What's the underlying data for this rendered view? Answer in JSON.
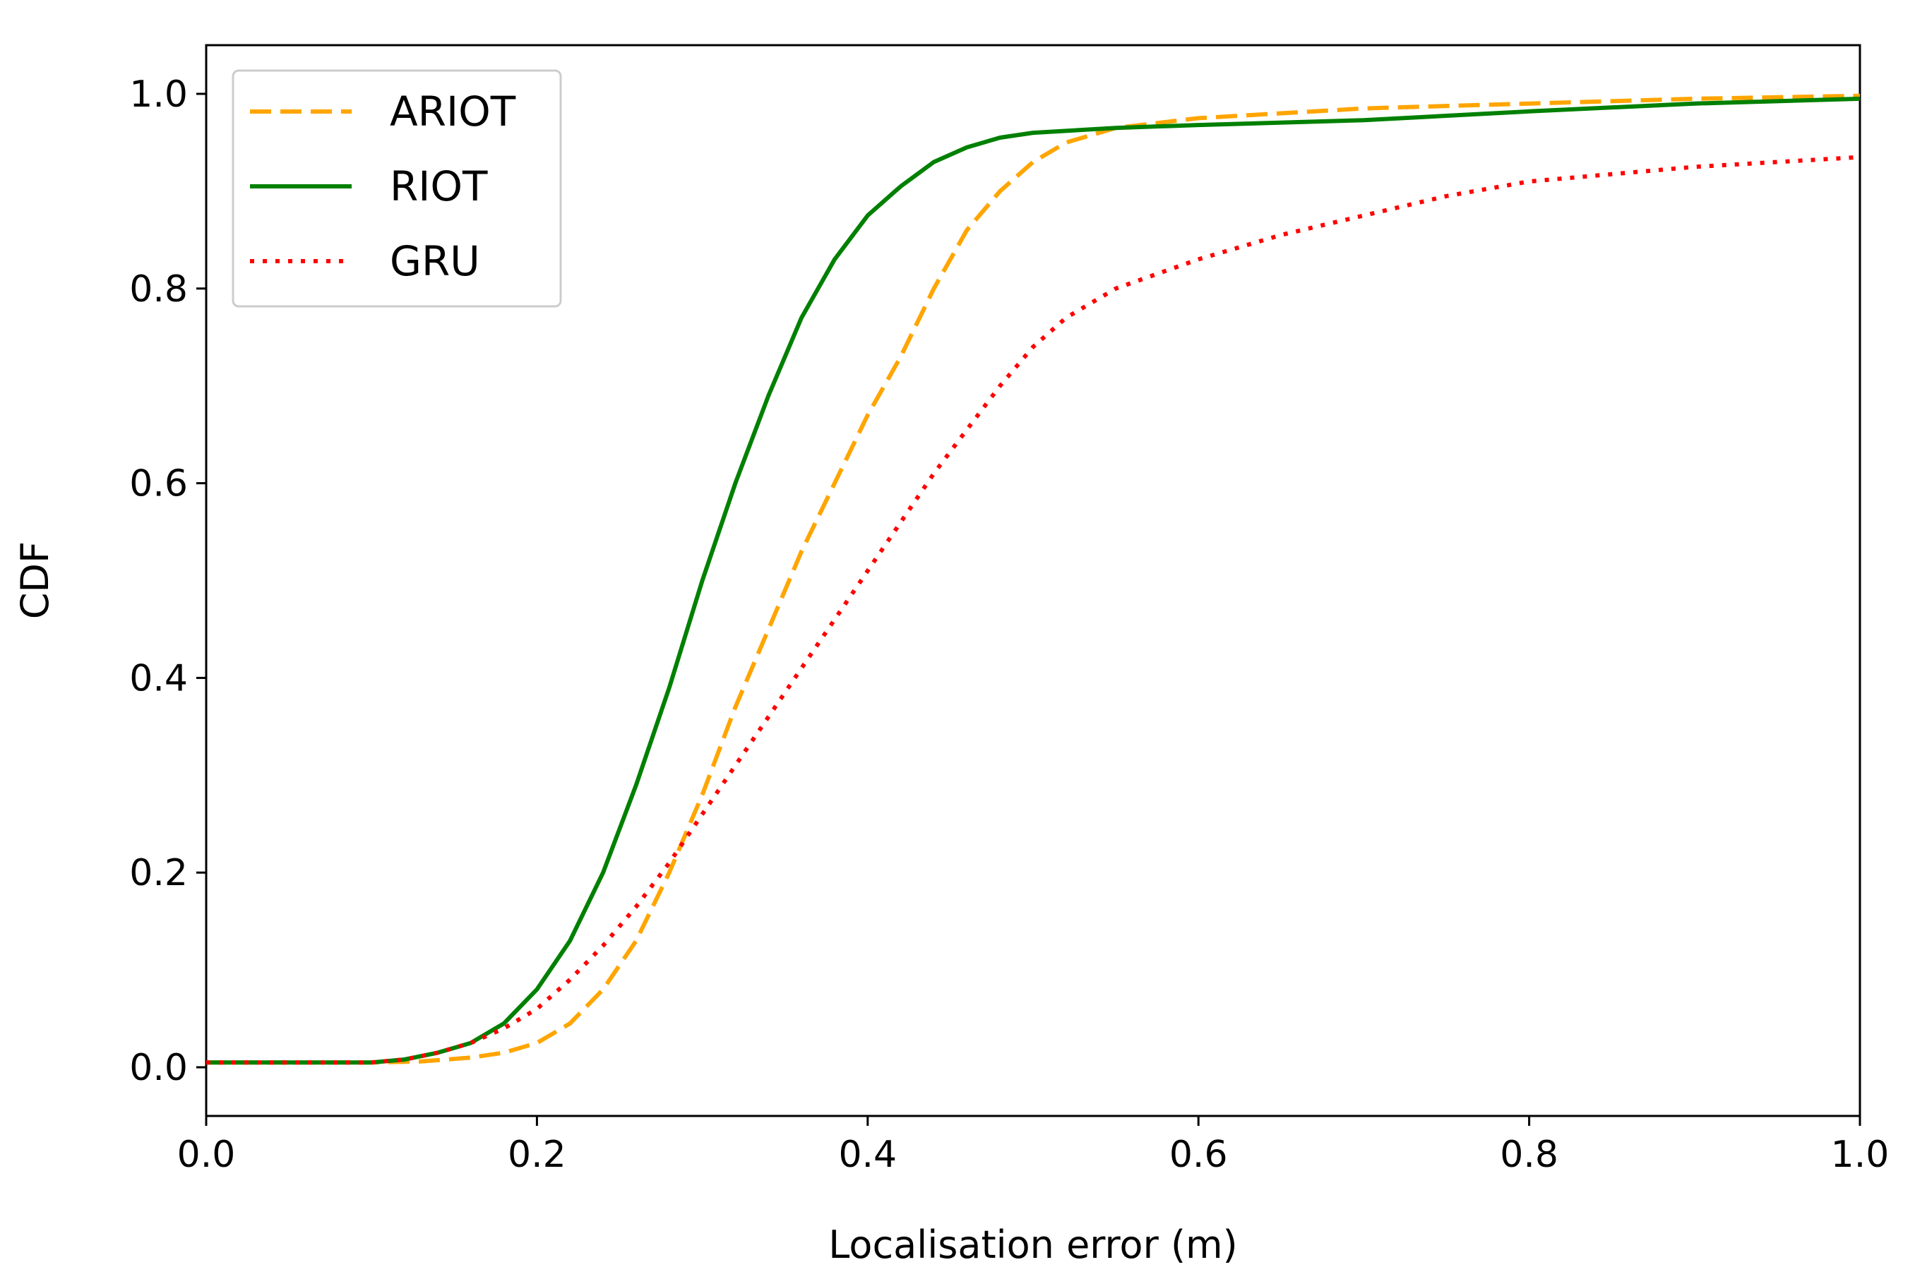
{
  "chart_data": {
    "type": "line",
    "xlabel": "Localisation error (m)",
    "ylabel": "CDF",
    "xlim": [
      0.0,
      1.0
    ],
    "ylim": [
      -0.05,
      1.05
    ],
    "x_ticks": [
      "0.0",
      "0.2",
      "0.4",
      "0.6",
      "0.8",
      "1.0"
    ],
    "y_ticks": [
      "0.0",
      "0.2",
      "0.4",
      "0.6",
      "0.8",
      "1.0"
    ],
    "x_tick_values": [
      0.0,
      0.2,
      0.4,
      0.6,
      0.8,
      1.0
    ],
    "y_tick_values": [
      0.0,
      0.2,
      0.4,
      0.6,
      0.8,
      1.0
    ],
    "grid": false,
    "legend_position": "top-left",
    "series": [
      {
        "name": "ARIOT",
        "color": "#ffa500",
        "style": "dashed",
        "points": [
          [
            0.0,
            0.005
          ],
          [
            0.1,
            0.005
          ],
          [
            0.13,
            0.006
          ],
          [
            0.16,
            0.01
          ],
          [
            0.18,
            0.015
          ],
          [
            0.2,
            0.025
          ],
          [
            0.22,
            0.045
          ],
          [
            0.24,
            0.08
          ],
          [
            0.26,
            0.13
          ],
          [
            0.28,
            0.2
          ],
          [
            0.3,
            0.28
          ],
          [
            0.32,
            0.37
          ],
          [
            0.34,
            0.45
          ],
          [
            0.36,
            0.53
          ],
          [
            0.38,
            0.6
          ],
          [
            0.4,
            0.67
          ],
          [
            0.42,
            0.73
          ],
          [
            0.44,
            0.8
          ],
          [
            0.46,
            0.86
          ],
          [
            0.48,
            0.9
          ],
          [
            0.5,
            0.93
          ],
          [
            0.52,
            0.95
          ],
          [
            0.55,
            0.965
          ],
          [
            0.6,
            0.975
          ],
          [
            0.7,
            0.985
          ],
          [
            0.8,
            0.99
          ],
          [
            0.9,
            0.995
          ],
          [
            1.0,
            0.998
          ]
        ]
      },
      {
        "name": "RIOT",
        "color": "#008000",
        "style": "solid",
        "points": [
          [
            0.0,
            0.005
          ],
          [
            0.1,
            0.005
          ],
          [
            0.12,
            0.008
          ],
          [
            0.14,
            0.015
          ],
          [
            0.16,
            0.025
          ],
          [
            0.18,
            0.045
          ],
          [
            0.2,
            0.08
          ],
          [
            0.22,
            0.13
          ],
          [
            0.24,
            0.2
          ],
          [
            0.26,
            0.29
          ],
          [
            0.28,
            0.39
          ],
          [
            0.3,
            0.5
          ],
          [
            0.32,
            0.6
          ],
          [
            0.34,
            0.69
          ],
          [
            0.36,
            0.77
          ],
          [
            0.38,
            0.83
          ],
          [
            0.4,
            0.875
          ],
          [
            0.42,
            0.905
          ],
          [
            0.44,
            0.93
          ],
          [
            0.46,
            0.945
          ],
          [
            0.48,
            0.955
          ],
          [
            0.5,
            0.96
          ],
          [
            0.55,
            0.965
          ],
          [
            0.6,
            0.968
          ],
          [
            0.7,
            0.973
          ],
          [
            0.8,
            0.982
          ],
          [
            0.9,
            0.99
          ],
          [
            1.0,
            0.995
          ]
        ]
      },
      {
        "name": "GRU",
        "color": "#ff0000",
        "style": "dotted",
        "points": [
          [
            0.0,
            0.005
          ],
          [
            0.1,
            0.005
          ],
          [
            0.12,
            0.008
          ],
          [
            0.14,
            0.015
          ],
          [
            0.16,
            0.025
          ],
          [
            0.18,
            0.04
          ],
          [
            0.2,
            0.06
          ],
          [
            0.22,
            0.09
          ],
          [
            0.24,
            0.125
          ],
          [
            0.26,
            0.165
          ],
          [
            0.28,
            0.21
          ],
          [
            0.3,
            0.26
          ],
          [
            0.32,
            0.31
          ],
          [
            0.34,
            0.36
          ],
          [
            0.36,
            0.41
          ],
          [
            0.38,
            0.46
          ],
          [
            0.4,
            0.51
          ],
          [
            0.42,
            0.56
          ],
          [
            0.44,
            0.61
          ],
          [
            0.46,
            0.655
          ],
          [
            0.48,
            0.7
          ],
          [
            0.5,
            0.74
          ],
          [
            0.52,
            0.77
          ],
          [
            0.55,
            0.8
          ],
          [
            0.6,
            0.83
          ],
          [
            0.65,
            0.855
          ],
          [
            0.7,
            0.875
          ],
          [
            0.75,
            0.895
          ],
          [
            0.8,
            0.91
          ],
          [
            0.9,
            0.925
          ],
          [
            1.0,
            0.935
          ]
        ]
      }
    ]
  }
}
